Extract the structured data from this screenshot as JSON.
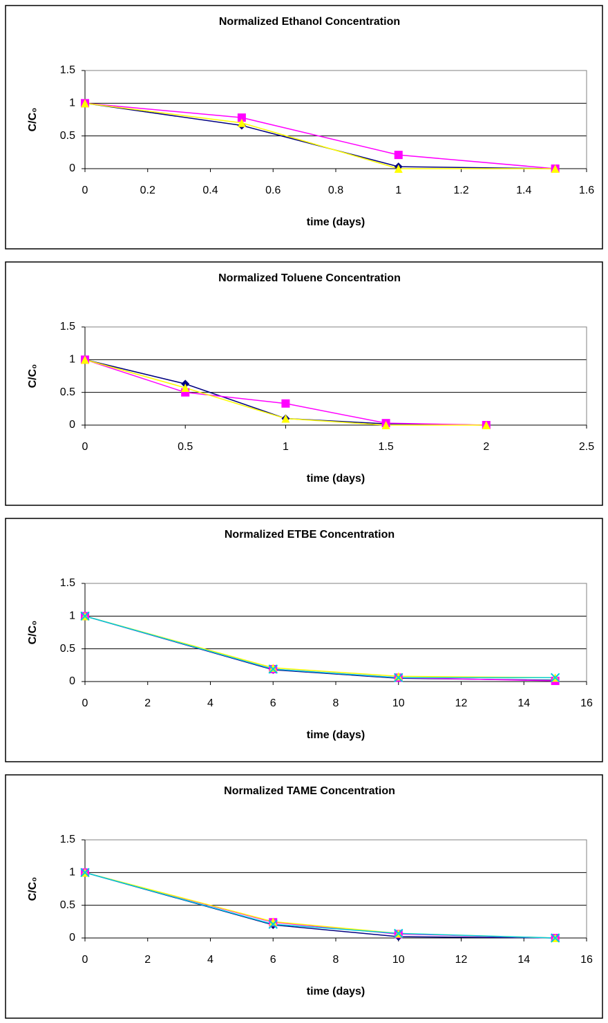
{
  "chart_data": [
    {
      "type": "line",
      "title": "Normalized Ethanol Concentration",
      "xlabel": "time (days)",
      "ylabel": "C/C₀",
      "x": [
        0,
        0.5,
        1,
        1.5
      ],
      "xlim": [
        0,
        1.6
      ],
      "xticks": [
        0,
        0.2,
        0.4,
        0.6,
        0.8,
        1,
        1.2,
        1.4,
        1.6
      ],
      "ylim": [
        0,
        1.5
      ],
      "yticks": [
        0,
        0.5,
        1,
        1.5
      ],
      "grid": true,
      "series": [
        {
          "color": "#000080",
          "marker": "diamond",
          "values": [
            1,
            0.66,
            0.03,
            0
          ]
        },
        {
          "color": "#ff00ff",
          "marker": "square",
          "values": [
            1,
            0.78,
            0.21,
            0
          ]
        },
        {
          "color": "#ffff00",
          "marker": "triangle",
          "values": [
            1,
            0.7,
            0,
            0
          ]
        }
      ]
    },
    {
      "type": "line",
      "title": "Normalized Toluene Concentration",
      "xlabel": "time (days)",
      "ylabel": "C/C₀",
      "x": [
        0,
        0.5,
        1,
        1.5,
        2
      ],
      "xlim": [
        0,
        2.5
      ],
      "xticks": [
        0,
        0.5,
        1,
        1.5,
        2,
        2.5
      ],
      "ylim": [
        0,
        1.5
      ],
      "yticks": [
        0,
        0.5,
        1,
        1.5
      ],
      "grid": true,
      "series": [
        {
          "color": "#000080",
          "marker": "diamond",
          "values": [
            1,
            0.63,
            0.1,
            0.02,
            0
          ]
        },
        {
          "color": "#ff00ff",
          "marker": "square",
          "values": [
            1,
            0.5,
            0.33,
            0.03,
            0
          ]
        },
        {
          "color": "#ffff00",
          "marker": "triangle",
          "values": [
            1,
            0.57,
            0.1,
            0,
            0
          ]
        }
      ]
    },
    {
      "type": "line",
      "title": "Normalized ETBE Concentration",
      "xlabel": "time (days)",
      "ylabel": "C/C₀",
      "x": [
        0,
        6,
        10,
        15
      ],
      "xlim": [
        0,
        16
      ],
      "xticks": [
        0,
        2,
        4,
        6,
        8,
        10,
        12,
        14,
        16
      ],
      "ylim": [
        0,
        1.5
      ],
      "yticks": [
        0,
        0.5,
        1,
        1.5
      ],
      "grid": true,
      "series": [
        {
          "color": "#000080",
          "marker": "diamond",
          "values": [
            1,
            0.18,
            0.05,
            0.02
          ]
        },
        {
          "color": "#ff00ff",
          "marker": "square",
          "values": [
            1,
            0.19,
            0.06,
            0.01
          ]
        },
        {
          "color": "#ffff00",
          "marker": "triangle",
          "values": [
            1,
            0.21,
            0.08,
            0.06
          ]
        },
        {
          "color": "#00ccdd",
          "marker": "x",
          "values": [
            1,
            0.19,
            0.06,
            0.06
          ]
        }
      ]
    },
    {
      "type": "line",
      "title": "Normalized TAME Concentration",
      "xlabel": "time (days)",
      "ylabel": "C/C₀",
      "x": [
        0,
        6,
        10,
        15
      ],
      "xlim": [
        0,
        16
      ],
      "xticks": [
        0,
        2,
        4,
        6,
        8,
        10,
        12,
        14,
        16
      ],
      "ylim": [
        0,
        1.5
      ],
      "yticks": [
        0,
        0.5,
        1,
        1.5
      ],
      "grid": true,
      "series": [
        {
          "color": "#000080",
          "marker": "diamond",
          "values": [
            1,
            0.2,
            0.02,
            0
          ]
        },
        {
          "color": "#ff00ff",
          "marker": "square",
          "values": [
            1,
            0.24,
            0.06,
            0
          ]
        },
        {
          "color": "#ffff00",
          "marker": "triangle",
          "values": [
            1,
            0.25,
            0.07,
            0
          ]
        },
        {
          "color": "#00ccdd",
          "marker": "x",
          "values": [
            1,
            0.21,
            0.07,
            0
          ]
        }
      ]
    }
  ]
}
